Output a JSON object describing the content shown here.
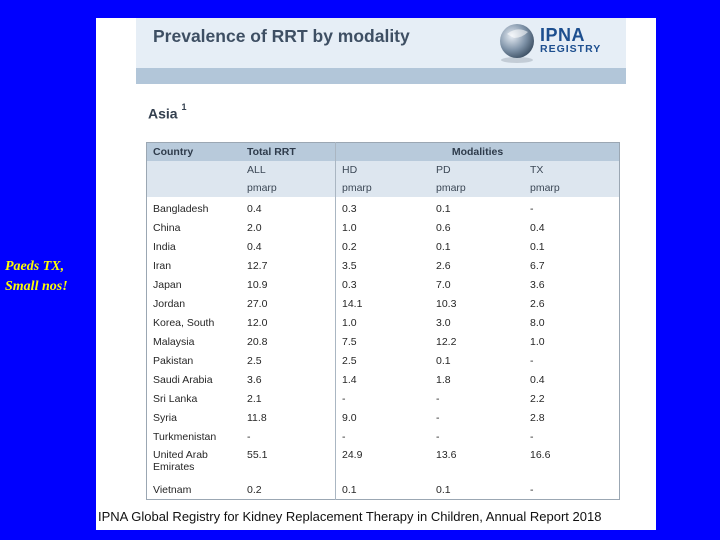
{
  "title": "Prevalence of RRT by modality",
  "logo": {
    "line1": "IPNA",
    "line2": "REGISTRY"
  },
  "region": {
    "name": "Asia",
    "footnote": "1"
  },
  "table": {
    "headers": {
      "country": "Country",
      "total_rrt": "Total RRT",
      "modalities": "Modalities"
    },
    "subheaders": [
      "ALL",
      "HD",
      "PD",
      "TX"
    ],
    "units": [
      "pmarp",
      "pmarp",
      "pmarp",
      "pmarp"
    ],
    "rows": [
      {
        "country": "Bangladesh",
        "all": "0.4",
        "hd": "0.3",
        "pd": "0.1",
        "tx": "-"
      },
      {
        "country": "China",
        "all": "2.0",
        "hd": "1.0",
        "pd": "0.6",
        "tx": "0.4"
      },
      {
        "country": "India",
        "all": "0.4",
        "hd": "0.2",
        "pd": "0.1",
        "tx": "0.1"
      },
      {
        "country": "Iran",
        "all": "12.7",
        "hd": "3.5",
        "pd": "2.6",
        "tx": "6.7"
      },
      {
        "country": "Japan",
        "all": "10.9",
        "hd": "0.3",
        "pd": "7.0",
        "tx": "3.6"
      },
      {
        "country": "Jordan",
        "all": "27.0",
        "hd": "14.1",
        "pd": "10.3",
        "tx": "2.6"
      },
      {
        "country": "Korea, South",
        "all": "12.0",
        "hd": "1.0",
        "pd": "3.0",
        "tx": "8.0"
      },
      {
        "country": "Malaysia",
        "all": "20.8",
        "hd": "7.5",
        "pd": "12.2",
        "tx": "1.0"
      },
      {
        "country": "Pakistan",
        "all": "2.5",
        "hd": "2.5",
        "pd": "0.1",
        "tx": "-"
      },
      {
        "country": "Saudi Arabia",
        "all": "3.6",
        "hd": "1.4",
        "pd": "1.8",
        "tx": "0.4"
      },
      {
        "country": "Sri Lanka",
        "all": "2.1",
        "hd": "-",
        "pd": "-",
        "tx": "2.2"
      },
      {
        "country": "Syria",
        "all": "11.8",
        "hd": "9.0",
        "pd": "-",
        "tx": "2.8"
      },
      {
        "country": "Turkmenistan",
        "all": "-",
        "hd": "-",
        "pd": "-",
        "tx": "-"
      },
      {
        "country": "United Arab Emirates",
        "all": "55.1",
        "hd": "24.9",
        "pd": "13.6",
        "tx": "16.6"
      },
      {
        "country": "Vietnam",
        "all": "0.2",
        "hd": "0.1",
        "pd": "0.1",
        "tx": "-"
      }
    ]
  },
  "footer": "IPNA Global Registry for Kidney Replacement Therapy in Children, Annual Report 2018",
  "side_note": {
    "line1": "Paeds TX,",
    "line2": "Small nos!"
  },
  "colors": {
    "background": "#0000ff",
    "header_band": "#b2c6d9",
    "side_note": "#ffff00"
  }
}
